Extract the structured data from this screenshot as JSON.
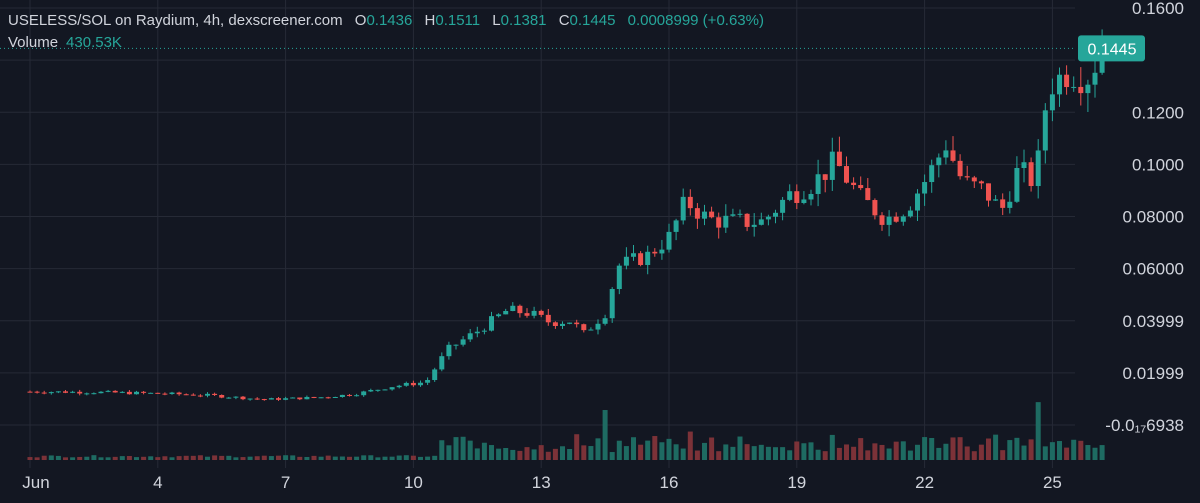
{
  "legend": {
    "title": "USELESS/SOL on Raydium, 4h, dexscreener.com",
    "open_label": "O",
    "open_value": "0.1436",
    "high_label": "H",
    "high_value": "0.1511",
    "low_label": "L",
    "low_value": "0.1381",
    "close_label": "C",
    "close_value": "0.1445",
    "change": "0.0008999 (+0.63%)",
    "volume_label": "Volume",
    "volume_value": "430.53K"
  },
  "colors": {
    "background": "#131722",
    "up": "#26a69a",
    "down": "#ef5350",
    "up_volume": "#1e6b62",
    "down_volume": "#7c3238",
    "grid": "#262a36",
    "text": "#d1d4dc",
    "price_tag": "#26a69a"
  },
  "chart_data": {
    "type": "candlestick",
    "timeframe": "4h",
    "pair": "USELESS/SOL",
    "price_axis": {
      "ticks": [
        {
          "label": "0.1600",
          "value": 0.16
        },
        {
          "label": "0.1400",
          "value": 0.14
        },
        {
          "label": "0.1200",
          "value": 0.12
        },
        {
          "label": "0.1000",
          "value": 0.1
        },
        {
          "label": "0.08000",
          "value": 0.08
        },
        {
          "label": "0.06000",
          "value": 0.06
        },
        {
          "label": "0.03999",
          "value": 0.03999
        },
        {
          "label": "0.01999",
          "value": 0.01999
        },
        {
          "label": "-0.0₁₇6938",
          "value": 0.0
        }
      ],
      "last_price_label": "0.1445",
      "last_price": 0.1445
    },
    "time_axis": {
      "labels": [
        {
          "label": "Jun",
          "day": 1
        },
        {
          "label": "4",
          "day": 4
        },
        {
          "label": "7",
          "day": 7
        },
        {
          "label": "10",
          "day": 10
        },
        {
          "label": "13",
          "day": 13
        },
        {
          "label": "16",
          "day": 16
        },
        {
          "label": "19",
          "day": 19
        },
        {
          "label": "22",
          "day": 22
        },
        {
          "label": "25",
          "day": 25
        }
      ]
    },
    "series_anchors": {
      "note_days_and_closes": "Approximate closing-price path; each day holds 6 four-hour candles",
      "points": [
        [
          0.0,
          0.0128
        ],
        [
          1.5,
          0.0126
        ],
        [
          3.0,
          0.0121
        ],
        [
          4.2,
          0.0114
        ],
        [
          5.5,
          0.0098
        ],
        [
          6.8,
          0.0106
        ],
        [
          7.6,
          0.0118
        ],
        [
          8.5,
          0.0148
        ],
        [
          9.3,
          0.0165
        ],
        [
          9.8,
          0.029
        ],
        [
          10.5,
          0.036
        ],
        [
          11.2,
          0.044
        ],
        [
          11.7,
          0.043
        ],
        [
          12.2,
          0.0395
        ],
        [
          12.7,
          0.04
        ],
        [
          13.0,
          0.035
        ],
        [
          13.5,
          0.043
        ],
        [
          13.8,
          0.061
        ],
        [
          14.5,
          0.065
        ],
        [
          15.0,
          0.072
        ],
        [
          15.4,
          0.086
        ],
        [
          15.9,
          0.079
        ],
        [
          16.5,
          0.078
        ],
        [
          17.2,
          0.078
        ],
        [
          17.8,
          0.088
        ],
        [
          18.4,
          0.093
        ],
        [
          18.9,
          0.101
        ],
        [
          19.5,
          0.087
        ],
        [
          20.1,
          0.079
        ],
        [
          20.6,
          0.084
        ],
        [
          21.1,
          0.096
        ],
        [
          21.5,
          0.108
        ],
        [
          21.9,
          0.093
        ],
        [
          22.4,
          0.09
        ],
        [
          22.8,
          0.082
        ],
        [
          23.2,
          0.098
        ],
        [
          23.6,
          0.093
        ],
        [
          23.9,
          0.13
        ],
        [
          24.4,
          0.136
        ],
        [
          24.8,
          0.133
        ],
        [
          25.2,
          0.1445
        ]
      ]
    },
    "volume_peaks": [
      {
        "day": 13.5,
        "relative": 0.54
      },
      {
        "day": 23.7,
        "relative": 0.65
      },
      {
        "day": 22.6,
        "relative": 0.34
      },
      {
        "day": 18.9,
        "relative": 0.31
      }
    ],
    "grid": true,
    "legend_position": "top-left"
  }
}
